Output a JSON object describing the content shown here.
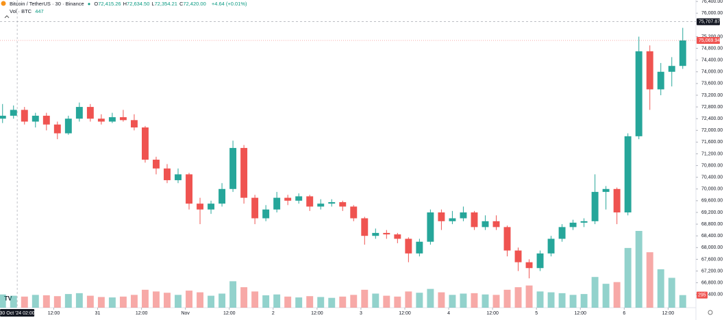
{
  "legend": {
    "symbol": "Bitcoin / TetherUS · 30 · Binance",
    "ohlc": [
      {
        "key": "O",
        "value": "72,415.26"
      },
      {
        "key": "H",
        "value": "72,634.50"
      },
      {
        "key": "L",
        "value": "72,354.21"
      },
      {
        "key": "C",
        "value": "72,420.00"
      }
    ],
    "change": "+4.64 (+0.01%)",
    "volume_title": "Vol · BTC",
    "volume_value": "447"
  },
  "chart_data": {
    "type": "candlestick",
    "x": [
      -2,
      1,
      4,
      7,
      10,
      13,
      16,
      19,
      22,
      25,
      28,
      31,
      34,
      37,
      40,
      43,
      46,
      49,
      52,
      55,
      58,
      61,
      64,
      67,
      70,
      73,
      76,
      79,
      82,
      85,
      88,
      91,
      94,
      97,
      100,
      103,
      106,
      109,
      112,
      115,
      118,
      121,
      124,
      127,
      130,
      133,
      136,
      139,
      142,
      145,
      148,
      151,
      154,
      157,
      160,
      163,
      166,
      169,
      172,
      175,
      178,
      181,
      184
    ],
    "open": [
      72400,
      72500,
      72700,
      72300,
      72500,
      72200,
      71900,
      72400,
      72800,
      72400,
      72300,
      72450,
      72350,
      72100,
      71000,
      70700,
      70300,
      70500,
      69500,
      69300,
      69500,
      70000,
      71400,
      69700,
      69000,
      69300,
      69700,
      69600,
      69750,
      69400,
      69500,
      69550,
      69400,
      69000,
      68400,
      68500,
      68450,
      68300,
      67800,
      68200,
      69200,
      68900,
      69000,
      69200,
      68700,
      68900,
      68700,
      67900,
      67500,
      67300,
      67800,
      68300,
      68700,
      68850,
      68900,
      69900,
      70000,
      69200,
      71800,
      74700,
      73400,
      74000,
      74200
    ],
    "high": [
      72900,
      72850,
      72800,
      72600,
      72600,
      72300,
      72500,
      72950,
      72900,
      72550,
      72600,
      72700,
      72550,
      72150,
      71100,
      70850,
      70700,
      70550,
      69700,
      69600,
      70200,
      71650,
      71500,
      69800,
      69450,
      69900,
      69800,
      69850,
      69800,
      69650,
      69650,
      69600,
      69450,
      69050,
      68650,
      68600,
      68500,
      68350,
      68300,
      69300,
      69300,
      69250,
      69400,
      69250,
      69100,
      69100,
      68750,
      68000,
      67600,
      67900,
      68400,
      68800,
      68950,
      69000,
      70500,
      70100,
      70050,
      71900,
      75200,
      74900,
      74300,
      74500,
      75500
    ],
    "low": [
      72250,
      72400,
      72200,
      72100,
      72000,
      71700,
      71850,
      72300,
      72300,
      72200,
      72250,
      72300,
      72000,
      70900,
      70500,
      70200,
      70200,
      69300,
      68800,
      69150,
      69400,
      69900,
      69500,
      68800,
      68900,
      69200,
      69450,
      69500,
      69250,
      69300,
      69400,
      69250,
      68900,
      68100,
      68300,
      68300,
      68150,
      67500,
      67700,
      68100,
      68600,
      68800,
      68900,
      68600,
      68600,
      68600,
      67700,
      67200,
      66950,
      67200,
      67700,
      68200,
      68600,
      68700,
      68800,
      69300,
      68800,
      69100,
      71700,
      72700,
      73200,
      73500,
      74100
    ],
    "close": [
      72500,
      72700,
      72300,
      72500,
      72200,
      71900,
      72400,
      72800,
      72400,
      72300,
      72450,
      72350,
      72100,
      71000,
      70700,
      70300,
      70500,
      69500,
      69300,
      69500,
      70000,
      71400,
      69700,
      69000,
      69300,
      69700,
      69600,
      69750,
      69400,
      69500,
      69550,
      69400,
      69000,
      68400,
      68500,
      68450,
      68300,
      67800,
      68200,
      69200,
      68900,
      69000,
      69200,
      68700,
      68900,
      68700,
      67900,
      67500,
      67300,
      67800,
      68300,
      68700,
      68850,
      68900,
      69900,
      70000,
      69200,
      71800,
      74700,
      73400,
      74000,
      74200,
      75069.94
    ],
    "volume": [
      310,
      280,
      260,
      300,
      290,
      270,
      320,
      340,
      280,
      250,
      240,
      260,
      300,
      420,
      380,
      350,
      300,
      400,
      360,
      280,
      330,
      620,
      480,
      380,
      290,
      310,
      260,
      240,
      270,
      250,
      230,
      260,
      300,
      420,
      330,
      280,
      260,
      380,
      350,
      440,
      360,
      300,
      330,
      340,
      310,
      300,
      420,
      480,
      520,
      380,
      360,
      340,
      300,
      320,
      720,
      560,
      600,
      1400,
      1800,
      1300,
      900,
      700,
      295
    ],
    "value_labels": {
      "last_close": "75,069.94",
      "last_volume": "295"
    },
    "up_color": "#26a69a",
    "down_color": "#ef5350",
    "xlim": [
      -2.7,
      187.6
    ],
    "xticks": [
      {
        "value": 12,
        "label": "12:00"
      },
      {
        "value": 24,
        "label": "31"
      },
      {
        "value": 36,
        "label": "12:00"
      },
      {
        "value": 48,
        "label": "Nov"
      },
      {
        "value": 60,
        "label": "12:00"
      },
      {
        "value": 72,
        "label": "2"
      },
      {
        "value": 84,
        "label": "12:00"
      },
      {
        "value": 96,
        "label": "3"
      },
      {
        "value": 108,
        "label": "12:00"
      },
      {
        "value": 120,
        "label": "4"
      },
      {
        "value": 132,
        "label": "12:00"
      },
      {
        "value": 144,
        "label": "5"
      },
      {
        "value": 156,
        "label": "12:00"
      },
      {
        "value": 168,
        "label": "6"
      },
      {
        "value": 180,
        "label": "12:00"
      }
    ],
    "ylim": [
      66300,
      76450
    ],
    "yticks": [
      {
        "value": 66400,
        "label": "66,400.00"
      },
      {
        "value": 66800,
        "label": "66,800.00"
      },
      {
        "value": 67200,
        "label": "67,200.00"
      },
      {
        "value": 67600,
        "label": "67,600.00"
      },
      {
        "value": 68000,
        "label": "68,000.00"
      },
      {
        "value": 68400,
        "label": "68,400.00"
      },
      {
        "value": 68800,
        "label": "68,800.00"
      },
      {
        "value": 69200,
        "label": "69,200.00"
      },
      {
        "value": 69600,
        "label": "69,600.00"
      },
      {
        "value": 70000,
        "label": "70,000.00"
      },
      {
        "value": 70400,
        "label": "70,400.00"
      },
      {
        "value": 70800,
        "label": "70,800.00"
      },
      {
        "value": 71200,
        "label": "71,200.00"
      },
      {
        "value": 71600,
        "label": "71,600.00"
      },
      {
        "value": 72000,
        "label": "72,000.00"
      },
      {
        "value": 72400,
        "label": "72,400.00"
      },
      {
        "value": 72800,
        "label": "72,800.00"
      },
      {
        "value": 73200,
        "label": "73,200.00"
      },
      {
        "value": 73600,
        "label": "73,600.00"
      },
      {
        "value": 74000,
        "label": "74,000.00"
      },
      {
        "value": 74400,
        "label": "74,400.00"
      },
      {
        "value": 74800,
        "label": "74,800.00"
      },
      {
        "value": 75200,
        "label": "75,200.00"
      },
      {
        "value": 76000,
        "label": "76,000.00"
      },
      {
        "value": 76400,
        "label": "76,400.00"
      }
    ],
    "crosshair": {
      "x": {
        "value": 2,
        "label": "30 Oct '24 02:00"
      },
      "y": {
        "value": 75707.87,
        "label": "75,707.87"
      }
    },
    "grid": false
  }
}
